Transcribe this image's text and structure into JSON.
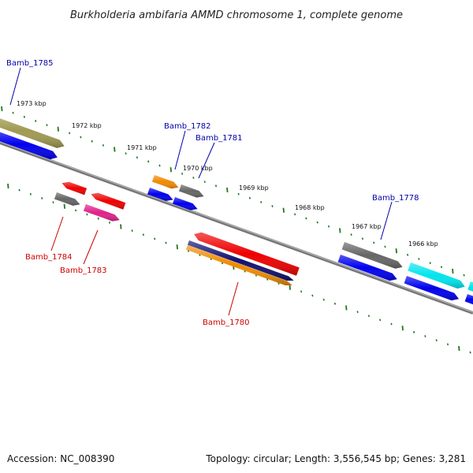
{
  "title": "Burkholderia ambifaria AMMD chromosome 1, complete genome",
  "footer": {
    "accession": "Accession: NC_008390",
    "topology": "Topology: circular; Length: 3,556,545 bp; Genes: 3,281"
  },
  "colors": {
    "backbone": "#777777",
    "tick": "#1d7a1d",
    "label_forward": "#0000aa",
    "label_reverse": "#cc0000"
  },
  "ruler": {
    "labels": [
      "1973 kbp",
      "1972 kbp",
      "1971 kbp",
      "1970 kbp",
      "1969 kbp",
      "1968 kbp",
      "1967 kbp",
      "1966 kbp"
    ]
  },
  "genes": [
    {
      "id": "g-top-left",
      "color": "#a09a52"
    },
    {
      "id": "g-blue-left",
      "color": "#0000ee"
    },
    {
      "id": "g-orange-1782",
      "color": "#f08a00"
    },
    {
      "id": "g-grey-1781",
      "color": "#666666"
    },
    {
      "id": "g-blue-a",
      "color": "#0000ee"
    },
    {
      "id": "g-blue-b",
      "color": "#0000ee"
    },
    {
      "id": "g-red-a",
      "color": "#ee0000"
    },
    {
      "id": "g-red-b",
      "color": "#ee0000"
    },
    {
      "id": "g-grey-1784",
      "color": "#666666"
    },
    {
      "id": "g-pink-1783",
      "color": "#e0208a"
    },
    {
      "id": "g-red-1780",
      "color": "#ee0000"
    },
    {
      "id": "g-navy-1780",
      "color": "#101070"
    },
    {
      "id": "g-orange-1780",
      "color": "#f08a00"
    },
    {
      "id": "g-grey-1778",
      "color": "#666666"
    },
    {
      "id": "g-blue-1778",
      "color": "#0000ee"
    },
    {
      "id": "g-cyan",
      "color": "#00e5ee"
    },
    {
      "id": "g-blue-right",
      "color": "#0000ee"
    },
    {
      "id": "g-cyan-edge",
      "color": "#00e5ee"
    },
    {
      "id": "g-blue-edge",
      "color": "#0000ee"
    }
  ],
  "labels": [
    {
      "text": "Bamb_1785",
      "strand": "forward"
    },
    {
      "text": "Bamb_1782",
      "strand": "forward"
    },
    {
      "text": "Bamb_1781",
      "strand": "forward"
    },
    {
      "text": "Bamb_1778",
      "strand": "forward"
    },
    {
      "text": "Bamb_1784",
      "strand": "reverse"
    },
    {
      "text": "Bamb_1783",
      "strand": "reverse"
    },
    {
      "text": "Bamb_1780",
      "strand": "reverse"
    }
  ]
}
